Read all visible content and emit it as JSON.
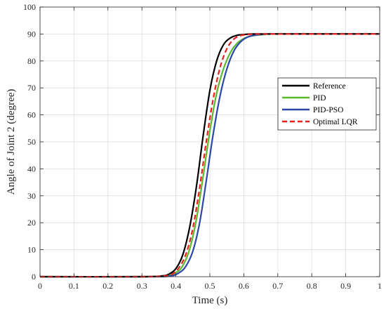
{
  "chart_data": {
    "type": "line",
    "xlabel": "Time (s)",
    "ylabel": "Angle of Joint 2 (degree)",
    "xlim": [
      0,
      1
    ],
    "ylim": [
      0,
      100
    ],
    "xticks": [
      "0",
      "0.1",
      "0.2",
      "0.3",
      "0.4",
      "0.5",
      "0.6",
      "0.7",
      "0.8",
      "0.9",
      "1"
    ],
    "yticks": [
      "0",
      "10",
      "20",
      "30",
      "40",
      "50",
      "60",
      "70",
      "80",
      "90",
      "100"
    ],
    "grid": true,
    "legend": {
      "position": "right",
      "entries": [
        "Reference",
        "PID",
        "PID-PSO",
        "Optimal LQR"
      ]
    },
    "series": [
      {
        "name": "Reference",
        "color": "#000000",
        "style": "solid",
        "x": [
          0,
          0.3,
          0.36,
          0.38,
          0.4,
          0.42,
          0.44,
          0.46,
          0.48,
          0.5,
          0.52,
          0.54,
          0.56,
          0.58,
          0.6,
          0.62,
          0.65,
          0.7,
          1
        ],
        "y": [
          0,
          0,
          0.3,
          1.0,
          3.0,
          8.0,
          18.0,
          33.0,
          52.0,
          69.0,
          80.0,
          86.0,
          88.5,
          89.5,
          89.8,
          90.0,
          90.0,
          90.0,
          90.0
        ]
      },
      {
        "name": "PID",
        "color": "#5cb82e",
        "style": "solid",
        "x": [
          0,
          0.3,
          0.37,
          0.4,
          0.42,
          0.44,
          0.46,
          0.48,
          0.5,
          0.52,
          0.54,
          0.56,
          0.58,
          0.6,
          0.62,
          0.64,
          0.66,
          0.7,
          1
        ],
        "y": [
          0,
          0,
          0.2,
          1.5,
          4.0,
          10.0,
          21.0,
          37.0,
          54.0,
          68.0,
          77.0,
          83.0,
          86.5,
          88.3,
          89.2,
          89.6,
          89.8,
          90.0,
          90.0
        ]
      },
      {
        "name": "PID-PSO",
        "color": "#2b48a8",
        "style": "solid",
        "x": [
          0,
          0.3,
          0.38,
          0.41,
          0.43,
          0.45,
          0.47,
          0.49,
          0.51,
          0.53,
          0.55,
          0.57,
          0.59,
          0.61,
          0.63,
          0.66,
          0.7,
          1
        ],
        "y": [
          0,
          0,
          0.2,
          1.5,
          4.0,
          9.5,
          20.0,
          36.0,
          53.0,
          67.0,
          77.0,
          83.5,
          87.0,
          88.8,
          89.5,
          89.9,
          90.0,
          90.0
        ]
      },
      {
        "name": "Optimal LQR",
        "color": "#e8211e",
        "style": "dashed",
        "x": [
          0,
          0.3,
          0.37,
          0.39,
          0.41,
          0.43,
          0.45,
          0.47,
          0.49,
          0.51,
          0.53,
          0.55,
          0.57,
          0.59,
          0.61,
          0.63,
          0.66,
          0.7,
          1
        ],
        "y": [
          0,
          0,
          0.3,
          1.0,
          3.5,
          8.5,
          18.0,
          33.0,
          50.5,
          66.0,
          77.5,
          84.5,
          88.0,
          89.4,
          89.8,
          90.0,
          90.0,
          90.0,
          90.0
        ]
      }
    ]
  }
}
